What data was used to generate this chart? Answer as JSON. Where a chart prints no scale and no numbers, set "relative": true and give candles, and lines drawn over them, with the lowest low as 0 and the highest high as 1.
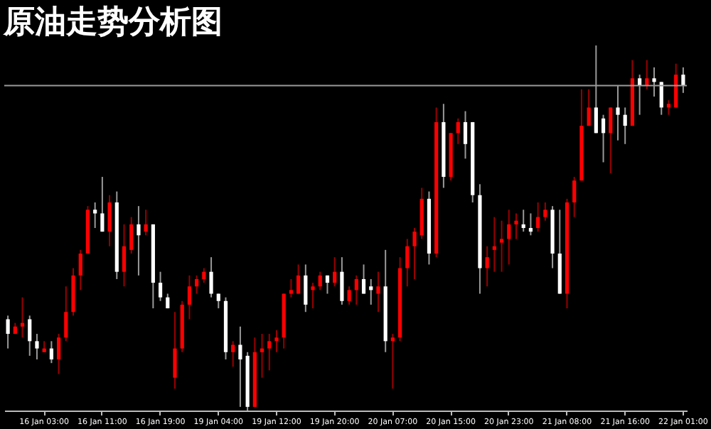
{
  "chart_data": {
    "type": "candlestick",
    "title": "原油走势分析图",
    "relative": true,
    "grid": false,
    "categories": [
      null,
      null,
      null,
      null,
      null,
      "16 Jan 03:00",
      null,
      null,
      null,
      null,
      null,
      null,
      null,
      "16 Jan 11:00",
      null,
      null,
      null,
      null,
      null,
      null,
      null,
      "16 Jan 19:00",
      null,
      null,
      null,
      null,
      null,
      null,
      null,
      "19 Jan 04:00",
      null,
      null,
      null,
      null,
      null,
      null,
      null,
      "19 Jan 12:00",
      null,
      null,
      null,
      null,
      null,
      null,
      null,
      "19 Jan 20:00",
      null,
      null,
      null,
      null,
      null,
      null,
      null,
      "20 Jan 07:00",
      null,
      null,
      null,
      null,
      null,
      null,
      null,
      "20 Jan 15:00",
      null,
      null,
      null,
      null,
      null,
      null,
      null,
      "20 Jan 23:00",
      null,
      null,
      null,
      null,
      null,
      null,
      null,
      "21 Jan 08:00",
      null,
      null,
      null,
      null,
      null,
      null,
      null,
      "21 Jan 16:00",
      null,
      null,
      null,
      null,
      null,
      null,
      null,
      "22 Jan 01:00"
    ],
    "ohlc": [
      [
        0.25,
        0.26,
        0.17,
        0.21
      ],
      [
        0.21,
        0.24,
        0.21,
        0.23
      ],
      [
        0.23,
        0.31,
        0.2,
        0.24
      ],
      [
        0.25,
        0.26,
        0.15,
        0.19
      ],
      [
        0.19,
        0.21,
        0.14,
        0.17
      ],
      [
        0.16,
        0.19,
        0.16,
        0.17
      ],
      [
        0.17,
        0.19,
        0.13,
        0.14
      ],
      [
        0.14,
        0.21,
        0.1,
        0.2
      ],
      [
        0.2,
        0.34,
        0.19,
        0.27
      ],
      [
        0.27,
        0.39,
        0.26,
        0.37
      ],
      [
        0.37,
        0.44,
        0.33,
        0.43
      ],
      [
        0.43,
        0.56,
        0.43,
        0.55
      ],
      [
        0.55,
        0.57,
        0.5,
        0.54
      ],
      [
        0.54,
        0.64,
        0.49,
        0.49
      ],
      [
        0.49,
        0.59,
        0.45,
        0.57
      ],
      [
        0.57,
        0.6,
        0.36,
        0.38
      ],
      [
        0.38,
        0.51,
        0.34,
        0.45
      ],
      [
        0.44,
        0.53,
        0.43,
        0.51
      ],
      [
        0.51,
        0.56,
        0.37,
        0.48
      ],
      [
        0.49,
        0.55,
        0.48,
        0.51
      ],
      [
        0.51,
        0.51,
        0.28,
        0.35
      ],
      [
        0.35,
        0.38,
        0.3,
        0.31
      ],
      [
        0.31,
        0.32,
        0.28,
        0.28
      ],
      [
        0.09,
        0.27,
        0.06,
        0.17
      ],
      [
        0.17,
        0.3,
        0.16,
        0.29
      ],
      [
        0.29,
        0.37,
        0.25,
        0.34
      ],
      [
        0.34,
        0.37,
        0.32,
        0.36
      ],
      [
        0.36,
        0.39,
        0.35,
        0.38
      ],
      [
        0.38,
        0.42,
        0.31,
        0.32
      ],
      [
        0.32,
        0.32,
        0.28,
        0.3
      ],
      [
        0.3,
        0.31,
        0.14,
        0.16
      ],
      [
        0.16,
        0.19,
        0.12,
        0.18
      ],
      [
        0.18,
        0.23,
        0.01,
        0.14
      ],
      [
        0.15,
        0.16,
        0,
        0.01
      ],
      [
        0.01,
        0.2,
        0.01,
        0.16
      ],
      [
        0.16,
        0.21,
        0.09,
        0.17
      ],
      [
        0.17,
        0.21,
        0.11,
        0.19
      ],
      [
        0.19,
        0.22,
        0.16,
        0.2
      ],
      [
        0.2,
        0.32,
        0.17,
        0.32
      ],
      [
        0.32,
        0.36,
        0.31,
        0.33
      ],
      [
        0.32,
        0.4,
        0.32,
        0.37
      ],
      [
        0.37,
        0.4,
        0.27,
        0.29
      ],
      [
        0.33,
        0.35,
        0.28,
        0.34
      ],
      [
        0.34,
        0.38,
        0.33,
        0.37
      ],
      [
        0.37,
        0.37,
        0.32,
        0.35
      ],
      [
        0.35,
        0.42,
        0.34,
        0.38
      ],
      [
        0.38,
        0.42,
        0.29,
        0.3
      ],
      [
        0.3,
        0.34,
        0.29,
        0.33
      ],
      [
        0.33,
        0.37,
        0.29,
        0.36
      ],
      [
        0.36,
        0.4,
        0.32,
        0.32
      ],
      [
        0.34,
        0.36,
        0.29,
        0.33
      ],
      [
        0.32,
        0.38,
        0.27,
        0.34
      ],
      [
        0.34,
        0.44,
        0.16,
        0.19
      ],
      [
        0.19,
        0.21,
        0.06,
        0.2
      ],
      [
        0.2,
        0.42,
        0.19,
        0.39
      ],
      [
        0.39,
        0.47,
        0.34,
        0.45
      ],
      [
        0.45,
        0.5,
        0.36,
        0.49
      ],
      [
        0.48,
        0.61,
        0.47,
        0.58
      ],
      [
        0.58,
        0.6,
        0.4,
        0.43
      ],
      [
        0.43,
        0.83,
        0.42,
        0.79
      ],
      [
        0.79,
        0.84,
        0.61,
        0.64
      ],
      [
        0.64,
        0.76,
        0.63,
        0.76
      ],
      [
        0.76,
        0.8,
        0.73,
        0.79
      ],
      [
        0.79,
        0.82,
        0.69,
        0.73
      ],
      [
        0.79,
        0.79,
        0.57,
        0.59
      ],
      [
        0.59,
        0.62,
        0.32,
        0.39
      ],
      [
        0.39,
        0.45,
        0.34,
        0.42
      ],
      [
        0.44,
        0.53,
        0.38,
        0.45
      ],
      [
        0.46,
        0.52,
        0.38,
        0.47
      ],
      [
        0.47,
        0.55,
        0.4,
        0.51
      ],
      [
        0.51,
        0.54,
        0.47,
        0.52
      ],
      [
        0.51,
        0.55,
        0.49,
        0.5
      ],
      [
        0.5,
        0.54,
        0.48,
        0.49
      ],
      [
        0.5,
        0.57,
        0.49,
        0.53
      ],
      [
        0.53,
        0.57,
        0.52,
        0.55
      ],
      [
        0.55,
        0.56,
        0.39,
        0.43
      ],
      [
        0.43,
        0.55,
        0.32,
        0.32
      ],
      [
        0.32,
        0.58,
        0.28,
        0.57
      ],
      [
        0.57,
        0.64,
        0.53,
        0.63
      ],
      [
        0.63,
        0.88,
        0.63,
        0.78
      ],
      [
        0.78,
        0.88,
        0.78,
        0.83
      ],
      [
        0.83,
        1.0,
        0.76,
        0.76
      ],
      [
        0.8,
        0.81,
        0.68,
        0.76
      ],
      [
        0.76,
        0.83,
        0.65,
        0.83
      ],
      [
        0.83,
        0.89,
        0.74,
        0.81
      ],
      [
        0.81,
        0.83,
        0.73,
        0.78
      ],
      [
        0.78,
        0.96,
        0.78,
        0.91
      ],
      [
        0.91,
        0.92,
        0.81,
        0.89
      ],
      [
        0.89,
        0.96,
        0.88,
        0.91
      ],
      [
        0.91,
        0.94,
        0.86,
        0.9
      ],
      [
        0.9,
        0.9,
        0.81,
        0.83
      ],
      [
        0.83,
        0.85,
        0.81,
        0.84
      ],
      [
        0.83,
        0.95,
        0.83,
        0.92
      ],
      [
        0.92,
        0.94,
        0.87,
        0.89
      ]
    ],
    "colors": [
      "#ffffff",
      "#ff0000",
      "#ff0000",
      "#ffffff",
      "#ffffff",
      "#ff0000",
      "#ffffff",
      "#ff0000",
      "#ff0000",
      "#ff0000",
      "#ff0000",
      "#ff0000",
      "#ffffff",
      "#ffffff",
      "#ff0000",
      "#ffffff",
      "#ff0000",
      "#ff0000",
      "#ffffff",
      "#ff0000",
      "#ffffff",
      "#ffffff",
      "#ffffff",
      "#ff0000",
      "#ff0000",
      "#ff0000",
      "#ff0000",
      "#ff0000",
      "#ffffff",
      "#ffffff",
      "#ffffff",
      "#ff0000",
      "#ffffff",
      "#ffffff",
      "#ff0000",
      "#ff0000",
      "#ff0000",
      "#ff0000",
      "#ff0000",
      "#ff0000",
      "#ff0000",
      "#ffffff",
      "#ff0000",
      "#ff0000",
      "#ffffff",
      "#ff0000",
      "#ffffff",
      "#ff0000",
      "#ff0000",
      "#ffffff",
      "#ffffff",
      "#ff0000",
      "#ffffff",
      "#ff0000",
      "#ff0000",
      "#ff0000",
      "#ff0000",
      "#ff0000",
      "#ffffff",
      "#ff0000",
      "#ffffff",
      "#ff0000",
      "#ff0000",
      "#ffffff",
      "#ffffff",
      "#ffffff",
      "#ff0000",
      "#ff0000",
      "#ff0000",
      "#ff0000",
      "#ff0000",
      "#ffffff",
      "#ffffff",
      "#ff0000",
      "#ff0000",
      "#ffffff",
      "#ffffff",
      "#ff0000",
      "#ff0000",
      "#ff0000",
      "#ff0000",
      "#ffffff",
      "#ffffff",
      "#ff0000",
      "#ffffff",
      "#ffffff",
      "#ff0000",
      "#ffffff",
      "#ff0000",
      "#ffffff",
      "#ffffff",
      "#ff0000",
      "#ff0000",
      "#ffffff"
    ],
    "ref_lines": [
      {
        "axis": "y",
        "value": 0.89,
        "color": "#9a9a9a"
      }
    ]
  }
}
